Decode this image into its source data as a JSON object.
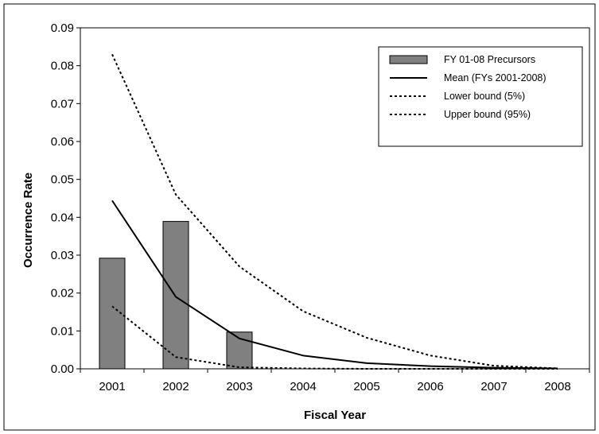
{
  "chart_data": {
    "type": "bar",
    "title": "",
    "xlabel": "Fiscal Year",
    "ylabel": "Occurrence Rate",
    "categories": [
      "2001",
      "2002",
      "2003",
      "2004",
      "2005",
      "2006",
      "2007",
      "2008"
    ],
    "ylim": [
      0,
      0.09
    ],
    "yticks": [
      "0.00",
      "0.01",
      "0.02",
      "0.03",
      "0.04",
      "0.05",
      "0.06",
      "0.07",
      "0.08",
      "0.09"
    ],
    "legend_position": "top-right",
    "series": [
      {
        "name": "FY 01-08 Precursors",
        "kind": "bar",
        "color": "#808080",
        "values": [
          0.0292,
          0.0389,
          0.0097,
          null,
          null,
          null,
          null,
          null
        ]
      },
      {
        "name": "Mean (FYs 2001-2008)",
        "kind": "line",
        "style": "solid",
        "color": "#000000",
        "values": [
          0.0444,
          0.019,
          0.008,
          0.0035,
          0.0015,
          0.0007,
          0.0003,
          0.0001
        ]
      },
      {
        "name": "Lower bound (5%)",
        "kind": "line",
        "style": "dotted",
        "color": "#000000",
        "values": [
          0.0165,
          0.0031,
          0.0004,
          0.0001,
          0.0,
          0.0,
          0.0,
          0.0
        ]
      },
      {
        "name": "Upper bound (95%)",
        "kind": "line",
        "style": "dotted",
        "color": "#000000",
        "values": [
          0.083,
          0.046,
          0.027,
          0.0152,
          0.0082,
          0.0035,
          0.0008,
          0.0001
        ]
      }
    ]
  }
}
